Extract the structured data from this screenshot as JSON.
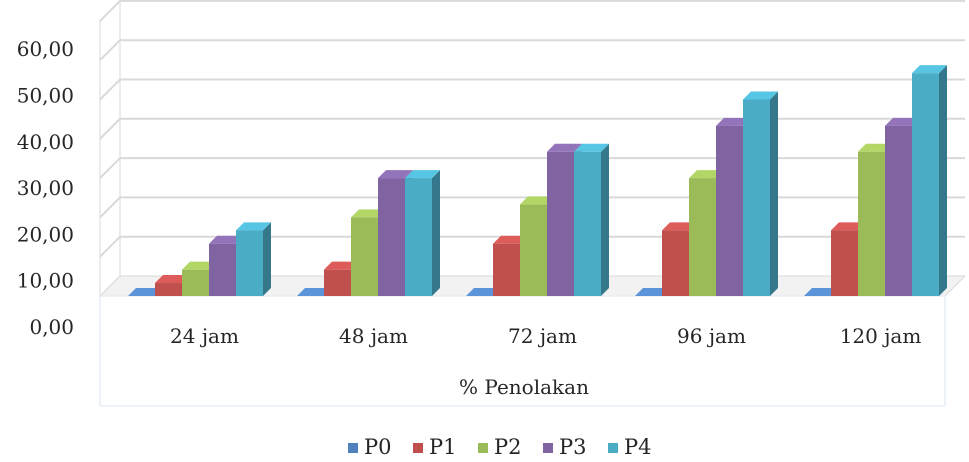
{
  "chart_data": {
    "type": "bar",
    "title": "",
    "xlabel": "% Penolakan",
    "ylabel": "",
    "categories": [
      "24 jam",
      "48 jam",
      "72 jam",
      "96 jam",
      "120 jam"
    ],
    "y_tick_labels": [
      "0,00",
      "10,00",
      "20,00",
      "30,00",
      "40,00",
      "50,00",
      "60,00"
    ],
    "ylim": [
      0,
      70
    ],
    "grid": true,
    "legend_position": "bottom",
    "three_d": true,
    "series": [
      {
        "name": "P0",
        "color": "#4f81bd",
        "values": [
          0,
          0,
          0,
          0,
          0
        ]
      },
      {
        "name": "P1",
        "color": "#c0504d",
        "values": [
          3.3,
          6.7,
          13.3,
          16.7,
          16.7
        ]
      },
      {
        "name": "P2",
        "color": "#9bbb59",
        "values": [
          6.7,
          20,
          23.3,
          30,
          36.7
        ]
      },
      {
        "name": "P3",
        "color": "#8064a2",
        "values": [
          13.3,
          30,
          36.7,
          43.3,
          43.3
        ]
      },
      {
        "name": "P4",
        "color": "#4bacc6",
        "values": [
          16.7,
          30,
          36.7,
          50,
          56.7
        ]
      }
    ]
  }
}
